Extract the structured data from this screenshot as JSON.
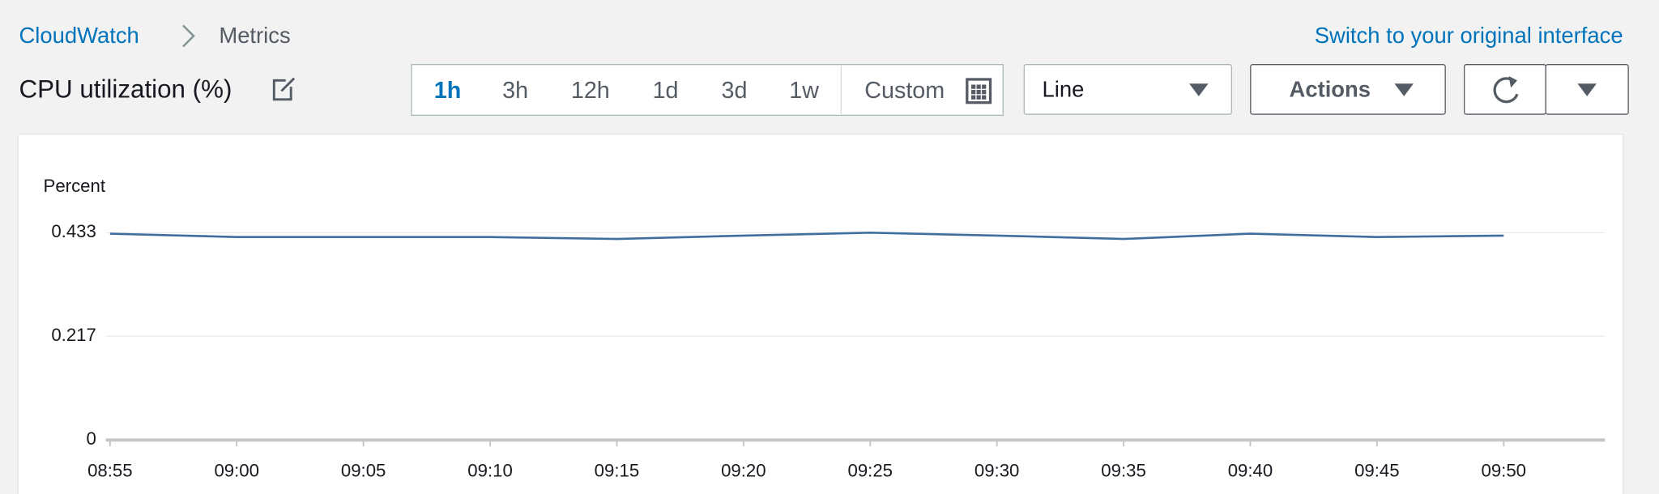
{
  "breadcrumb": {
    "root": "CloudWatch",
    "current": "Metrics"
  },
  "switch_link": "Switch to your original interface",
  "metric_title": "CPU utilization (%)",
  "time_ranges": [
    "1h",
    "3h",
    "12h",
    "1d",
    "3d",
    "1w"
  ],
  "custom_range": "Custom",
  "chart_type_select": "Line",
  "actions_button": "Actions",
  "chart_data": {
    "type": "line",
    "y_label": "Percent",
    "categories": [
      "08:55",
      "09:00",
      "09:05",
      "09:10",
      "09:15",
      "09:20",
      "09:25",
      "09:30",
      "09:35",
      "09:40",
      "09:45",
      "09:50"
    ],
    "series": [
      {
        "name": "CPU utilization",
        "color": "#3f6f9f",
        "values": [
          0.431,
          0.424,
          0.424,
          0.424,
          0.42,
          0.427,
          0.433,
          0.427,
          0.42,
          0.431,
          0.424,
          0.427
        ]
      }
    ],
    "ylim": [
      0,
      0.433
    ],
    "yticks": [
      0,
      0.217,
      0.433
    ],
    "grid": true
  }
}
